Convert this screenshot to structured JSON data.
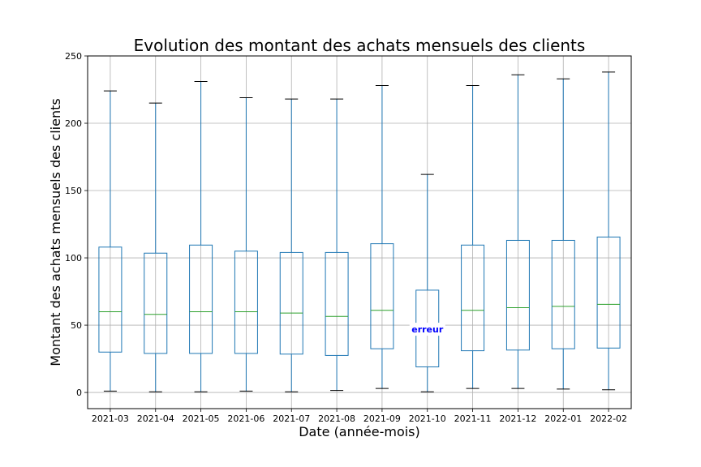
{
  "chart_data": {
    "type": "box",
    "title": "Evolution des montant des achats mensuels des clients",
    "xlabel": "Date (année-mois)",
    "ylabel": "Montant des achats mensuels des clients",
    "ylim": [
      -12,
      250
    ],
    "yticks": [
      0,
      50,
      100,
      150,
      200,
      250
    ],
    "grid": true,
    "box_color": "#1f77b4",
    "median_color": "#2ca02c",
    "categories": [
      "2021-03",
      "2021-04",
      "2021-05",
      "2021-06",
      "2021-07",
      "2021-08",
      "2021-09",
      "2021-10",
      "2021-11",
      "2021-12",
      "2022-01",
      "2022-02"
    ],
    "boxes": [
      {
        "whislo": 1.0,
        "q1": 30.0,
        "med": 60.0,
        "q3": 108.0,
        "whishi": 224.0
      },
      {
        "whislo": 0.5,
        "q1": 29.0,
        "med": 58.0,
        "q3": 103.5,
        "whishi": 215.0
      },
      {
        "whislo": 0.5,
        "q1": 29.0,
        "med": 60.0,
        "q3": 109.5,
        "whishi": 231.0
      },
      {
        "whislo": 1.0,
        "q1": 29.0,
        "med": 60.0,
        "q3": 105.0,
        "whishi": 219.0
      },
      {
        "whislo": 0.5,
        "q1": 28.5,
        "med": 59.0,
        "q3": 104.0,
        "whishi": 218.0
      },
      {
        "whislo": 1.5,
        "q1": 27.5,
        "med": 56.5,
        "q3": 104.0,
        "whishi": 218.0
      },
      {
        "whislo": 3.0,
        "q1": 32.5,
        "med": 61.0,
        "q3": 110.5,
        "whishi": 228.0
      },
      {
        "whislo": 0.5,
        "q1": 19.0,
        "med": 47.0,
        "q3": 76.0,
        "whishi": 162.0
      },
      {
        "whislo": 3.0,
        "q1": 31.0,
        "med": 61.0,
        "q3": 109.5,
        "whishi": 228.0
      },
      {
        "whislo": 3.0,
        "q1": 31.5,
        "med": 63.0,
        "q3": 113.0,
        "whishi": 236.0
      },
      {
        "whislo": 2.5,
        "q1": 32.5,
        "med": 64.0,
        "q3": 113.0,
        "whishi": 233.0
      },
      {
        "whislo": 2.0,
        "q1": 33.0,
        "med": 65.5,
        "q3": 115.5,
        "whishi": 238.0
      }
    ],
    "annotations": [
      {
        "category": "2021-10",
        "y": 47,
        "text": "erreur",
        "color": "#0000ff"
      }
    ]
  }
}
